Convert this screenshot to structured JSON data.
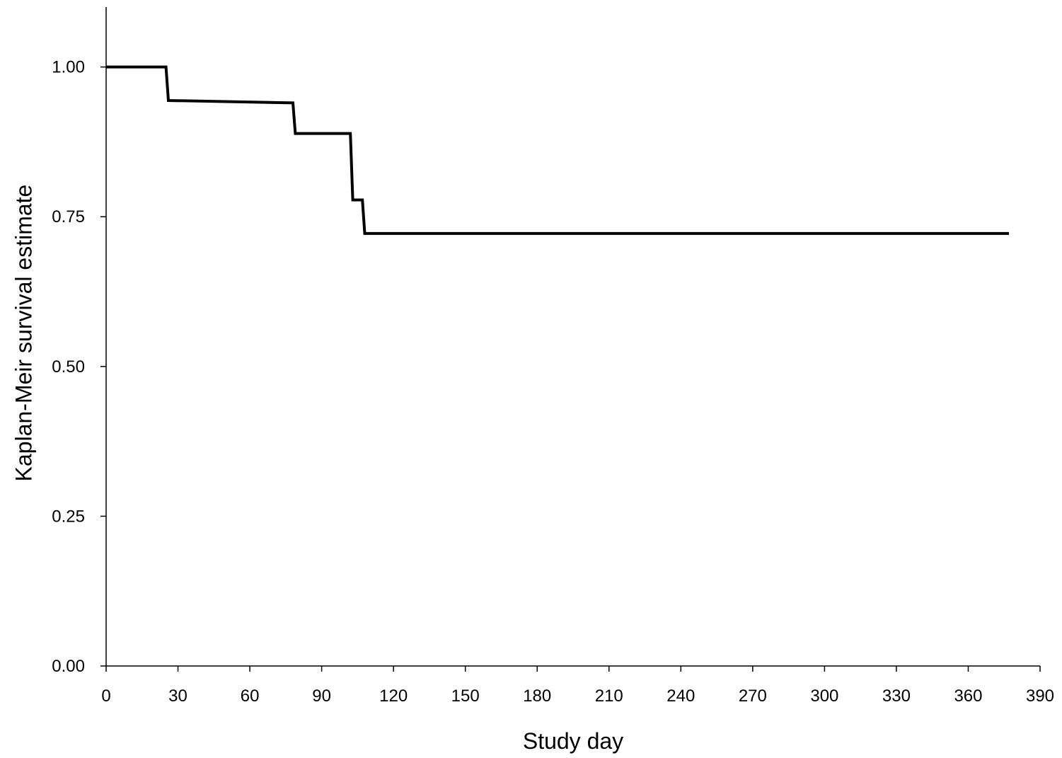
{
  "chart_data": {
    "type": "line",
    "title": "",
    "xlabel": "Study day",
    "ylabel": "Kaplan-Meir survival estimate",
    "xlim": [
      0,
      390
    ],
    "ylim": [
      0,
      1.1
    ],
    "x_ticks": [
      0,
      30,
      60,
      90,
      120,
      150,
      180,
      210,
      240,
      270,
      300,
      330,
      360,
      390
    ],
    "x_tick_labels": [
      "0",
      "30",
      "60",
      "90",
      "120",
      "150",
      "180",
      "210",
      "240",
      "270",
      "300",
      "330",
      "360",
      "390"
    ],
    "y_ticks": [
      0,
      0.25,
      0.5,
      0.75,
      1.0
    ],
    "y_tick_labels": [
      "0.00",
      "0.25",
      "0.50",
      "0.75",
      "1.00"
    ],
    "grid": false,
    "legend": "none",
    "series": [
      {
        "line_color": "#000000",
        "points": [
          {
            "x": 0,
            "y": 1.0
          },
          {
            "x": 25,
            "y": 1.0
          },
          {
            "x": 26,
            "y": 0.944
          },
          {
            "x": 78,
            "y": 0.94
          },
          {
            "x": 79,
            "y": 0.889
          },
          {
            "x": 102,
            "y": 0.889
          },
          {
            "x": 103,
            "y": 0.778
          },
          {
            "x": 107,
            "y": 0.778
          },
          {
            "x": 108,
            "y": 0.722
          },
          {
            "x": 377,
            "y": 0.722
          }
        ]
      }
    ]
  }
}
